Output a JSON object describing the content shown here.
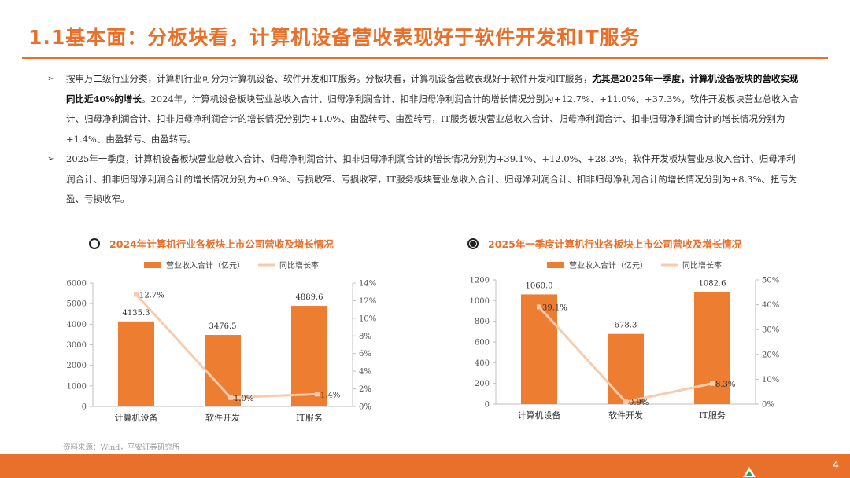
{
  "header": {
    "title": "1.1基本面：分板块看，计算机设备营收表现好于软件开发和IT服务"
  },
  "paragraphs": [
    {
      "bullet": "➢",
      "before": "按申万二级行业分类，计算机行业可分为计算机设备、软件开发和IT服务。分板块看，计算机设备营收表现好于软件开发和IT服务，",
      "bold": "尤其是2025年一季度，计算机设备板块的营收实现同比近40%的增长",
      "after": "。2024年，计算机设备板块营业总收入合计、归母净利润合计、扣非归母净利润合计的增长情况分别为+12.7%、+11.0%、+37.3%，软件开发板块营业总收入合计、归母净利润合计、扣非归母净利润合计的增长情况分别为+1.0%、由盈转亏、由盈转亏，IT服务板块营业总收入合计、归母净利润合计、扣非归母净利润合计的增长情况分别为+1.4%、由盈转亏、由盈转亏。"
    },
    {
      "bullet": "➢",
      "text": "2025年一季度，计算机设备板块营业总收入合计、归母净利润合计、扣非归母净利润合计的增长情况分别为+39.1%、+12.0%、+28.3%，软件开发板块营业总收入合计、归母净利润合计、扣非归母净利润合计的增长情况分别为+0.9%、亏损收窄、亏损收窄，IT服务板块营业总收入合计、归母净利润合计、扣非归母净利润合计的增长情况分别为+8.3%、扭亏为盈、亏损收窄。"
    }
  ],
  "chart_data": [
    {
      "type": "bar",
      "title": "2024年计算机行业各板块上市公司营收及增长情况",
      "radio_checked": false,
      "categories": [
        "计算机设备",
        "软件开发",
        "IT服务"
      ],
      "series": [
        {
          "name": "营业收入合计（亿元）",
          "type": "bar",
          "axis": "left",
          "values": [
            4135.3,
            3476.5,
            4889.6
          ],
          "labels": [
            "4135.3",
            "3476.5",
            "4889.6"
          ]
        },
        {
          "name": "同比增长率",
          "type": "line",
          "axis": "right",
          "values": [
            12.7,
            1.0,
            1.4
          ],
          "labels": [
            "12.7%",
            "1.0%",
            "1.4%"
          ]
        }
      ],
      "ylim": [
        0,
        6000
      ],
      "yticks": [
        "0",
        "1000",
        "2000",
        "3000",
        "4000",
        "5000",
        "6000"
      ],
      "y2lim": [
        0,
        14
      ],
      "y2ticks": [
        "0%",
        "2%",
        "4%",
        "6%",
        "8%",
        "10%",
        "12%",
        "14%"
      ],
      "legend": "top",
      "grid": false,
      "colors": {
        "bar": "#ED7D31",
        "line": "#F8CBAD"
      }
    },
    {
      "type": "bar",
      "title": "2025年一季度计算机行业各板块上市公司营收及增长情况",
      "radio_checked": true,
      "categories": [
        "计算机设备",
        "软件开发",
        "IT服务"
      ],
      "series": [
        {
          "name": "营业收入合计（亿元）",
          "type": "bar",
          "axis": "left",
          "values": [
            1060.0,
            678.3,
            1082.6
          ],
          "labels": [
            "1060.0",
            "678.3",
            "1082.6"
          ]
        },
        {
          "name": "同比增长率",
          "type": "line",
          "axis": "right",
          "values": [
            39.1,
            0.9,
            8.3
          ],
          "labels": [
            "39.1%",
            "0.9%",
            "8.3%"
          ]
        }
      ],
      "ylim": [
        0,
        1200
      ],
      "yticks": [
        "0",
        "200",
        "400",
        "600",
        "800",
        "1000",
        "1200"
      ],
      "y2lim": [
        0,
        50
      ],
      "y2ticks": [
        "0%",
        "10%",
        "20%",
        "30%",
        "40%",
        "50%"
      ],
      "legend": "top",
      "grid": false,
      "colors": {
        "bar": "#ED7D31",
        "line": "#F8CBAD"
      }
    }
  ],
  "source": "资料来源：Wind，平安证券研究所",
  "footer": {
    "page_number": "4"
  },
  "colors": {
    "accent": "#E8702A"
  }
}
